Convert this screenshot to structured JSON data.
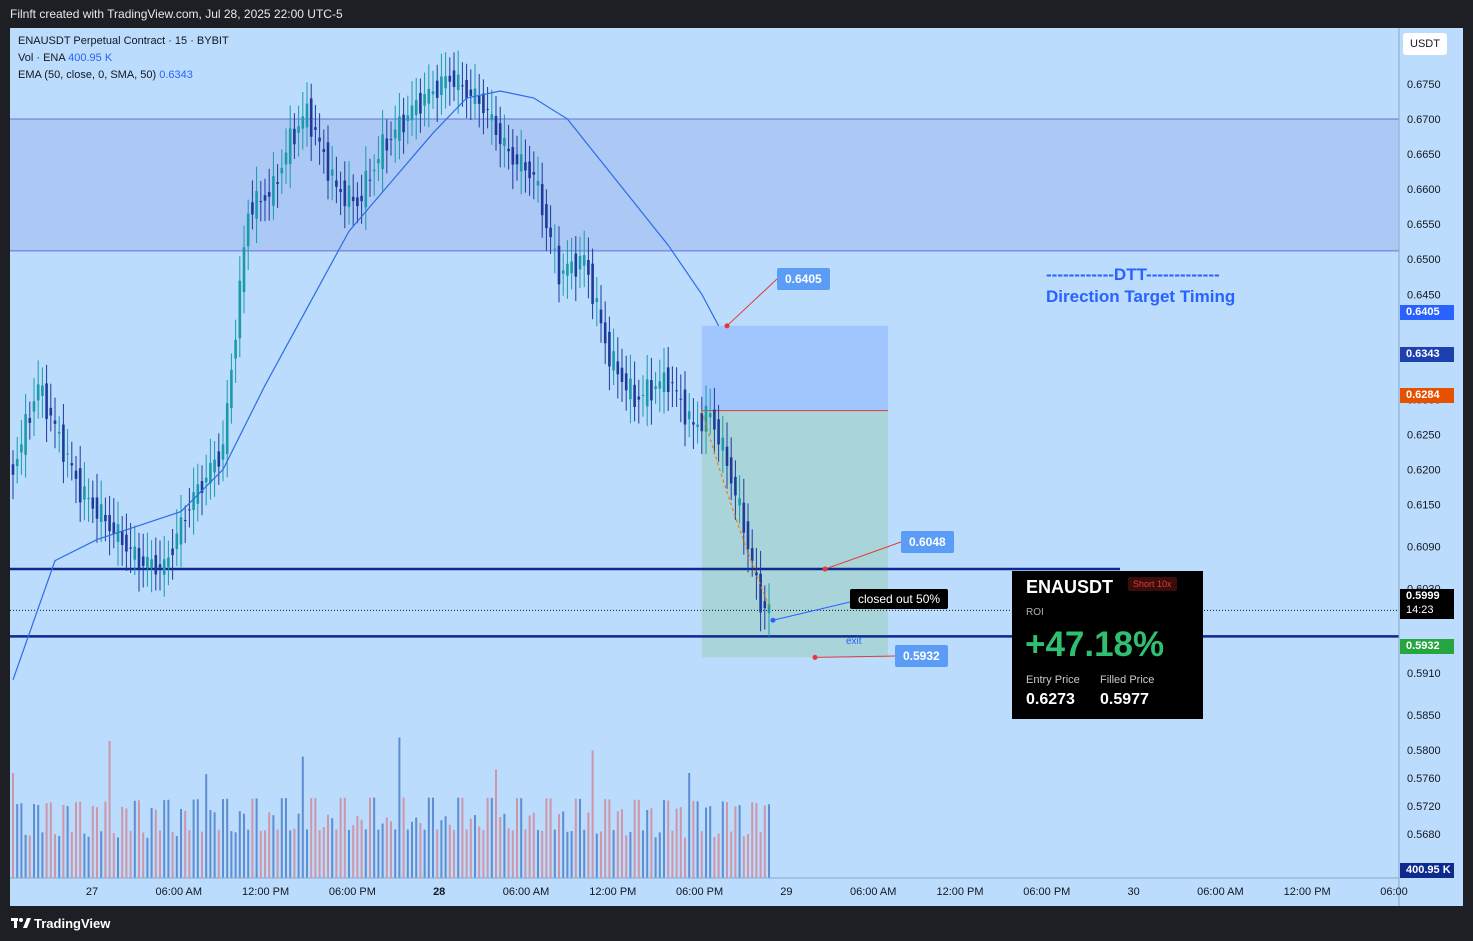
{
  "header": {
    "attribution": "Filnft created with TradingView.com, Jul 28, 2025 22:00 UTC-5"
  },
  "footer": {
    "brand": "TradingView"
  },
  "legend": {
    "title": "ENAUSDT Perpetual Contract · 15 · BYBIT",
    "vol_label": "Vol · ENA",
    "vol_value": "400.95 K",
    "ema_label": "EMA (50, close, 0, SMA, 50)",
    "ema_value": "0.6343"
  },
  "currency_button": "USDT",
  "annotation": {
    "line1": "------------DTT-------------",
    "line2": "Direction Target Timing"
  },
  "callouts": {
    "stop": "0.6405",
    "tp1": "0.6048",
    "tp2": "0.5932",
    "closed": "closed out 50%",
    "exit": "exit"
  },
  "price_tags": {
    "stop": "0.6405",
    "ema": "0.6343",
    "entry": "0.6284",
    "last": "0.5999",
    "countdown": "14:23",
    "target": "0.5932",
    "volume": "400.95 K"
  },
  "card": {
    "symbol": "ENAUSDT",
    "badge": "Short 10x",
    "roi_label": "ROI",
    "roi": "+47.18%",
    "entry_label": "Entry Price",
    "entry_value": "0.6273",
    "filled_label": "Filled Price",
    "filled_value": "0.5977"
  },
  "colors": {
    "background": "#bbdcfc",
    "up": "#1a9aaa",
    "down": "#1e3a9a",
    "ema": "#2e6be6",
    "zone": "#a9c6f4",
    "stop_zone": "#9fc3ff",
    "profit_zone": "#a7d4d6",
    "levels": "#0d2a8c"
  },
  "chart_data": {
    "type": "candlestick",
    "symbol": "ENAUSDT Perpetual Contract",
    "interval": "15",
    "exchange": "BYBIT",
    "y_ticks": [
      0.675,
      0.67,
      0.665,
      0.66,
      0.655,
      0.65,
      0.645,
      0.63,
      0.625,
      0.62,
      0.615,
      0.609,
      0.603,
      0.591,
      0.585,
      0.58,
      0.576,
      0.572,
      0.568
    ],
    "y_tick_labels": [
      "0.6750",
      "0.6700",
      "0.6650",
      "0.6600",
      "0.6550",
      "0.6500",
      "0.6450",
      "0.6300",
      "0.6250",
      "0.6200",
      "0.6150",
      "0.6090",
      "0.6030",
      "0.5910",
      "0.5850",
      "0.5800",
      "0.5760",
      "0.5720",
      "0.5680"
    ],
    "x_ticks": [
      "27",
      "06:00 AM",
      "12:00 PM",
      "06:00 PM",
      "28",
      "06:00 AM",
      "12:00 PM",
      "06:00 PM",
      "29",
      "06:00 AM",
      "12:00 PM",
      "06:00 PM",
      "30",
      "06:00 AM",
      "12:00 PM",
      "06:00"
    ],
    "zone": [
      0.6512,
      0.67
    ],
    "levels": [
      0.6058,
      0.5962
    ],
    "last_price": 0.5999,
    "position": {
      "side": "short",
      "entry": 0.6284,
      "stop": 0.6405,
      "target": 0.5932
    },
    "ema_last": 0.6343,
    "close_key": [
      [
        0,
        0.62
      ],
      [
        6,
        0.632
      ],
      [
        16,
        0.617
      ],
      [
        30,
        0.607
      ],
      [
        36,
        0.606
      ],
      [
        42,
        0.615
      ],
      [
        50,
        0.623
      ],
      [
        56,
        0.657
      ],
      [
        62,
        0.66
      ],
      [
        66,
        0.667
      ],
      [
        70,
        0.671
      ],
      [
        77,
        0.66
      ],
      [
        82,
        0.658
      ],
      [
        88,
        0.666
      ],
      [
        96,
        0.672
      ],
      [
        104,
        0.676
      ],
      [
        112,
        0.672
      ],
      [
        118,
        0.665
      ],
      [
        124,
        0.662
      ],
      [
        130,
        0.648
      ],
      [
        136,
        0.65
      ],
      [
        142,
        0.636
      ],
      [
        148,
        0.63
      ],
      [
        156,
        0.633
      ],
      [
        162,
        0.626
      ],
      [
        166,
        0.628
      ],
      [
        170,
        0.621
      ],
      [
        174,
        0.612
      ],
      [
        178,
        0.601
      ],
      [
        180,
        0.5999
      ]
    ],
    "ema_key": [
      [
        0,
        0.59
      ],
      [
        10,
        0.607
      ],
      [
        20,
        0.61
      ],
      [
        30,
        0.612
      ],
      [
        40,
        0.614
      ],
      [
        50,
        0.62
      ],
      [
        60,
        0.632
      ],
      [
        70,
        0.643
      ],
      [
        80,
        0.654
      ],
      [
        90,
        0.661
      ],
      [
        100,
        0.668
      ],
      [
        108,
        0.673
      ],
      [
        116,
        0.674
      ],
      [
        124,
        0.673
      ],
      [
        132,
        0.67
      ],
      [
        140,
        0.664
      ],
      [
        148,
        0.658
      ],
      [
        156,
        0.652
      ],
      [
        164,
        0.645
      ],
      [
        168,
        0.6405
      ]
    ],
    "volume_max_label": "400.95 K"
  }
}
